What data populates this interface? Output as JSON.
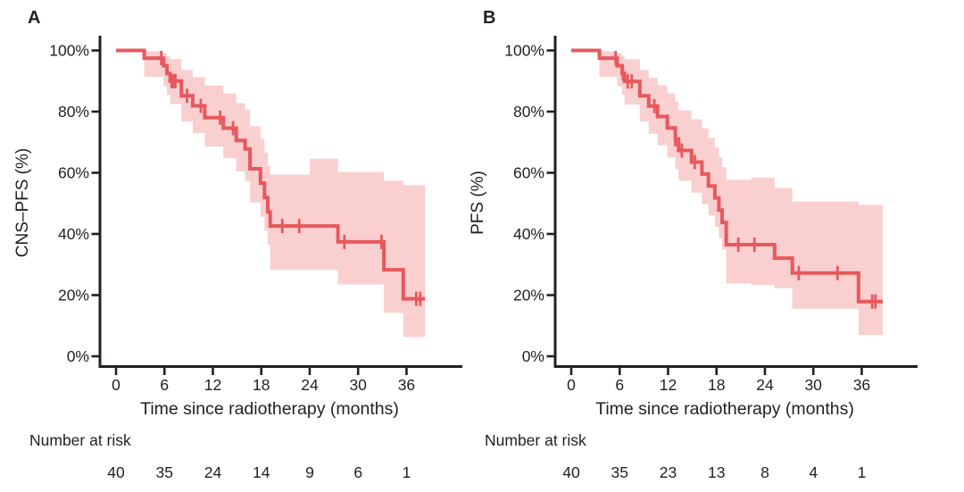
{
  "figure": {
    "background": "#ffffff",
    "accent_color": "#e7585c",
    "band_color": "#f9cfd0",
    "axis_color": "#231f20"
  },
  "chart_data": [
    {
      "type": "line",
      "subtype": "kaplan_meier_step",
      "panel_label": "A",
      "ylabel": "CNS–PFS (%)",
      "xlabel": "Time since radiotherapy (months)",
      "xlim": [
        0,
        43
      ],
      "ylim": [
        0,
        100
      ],
      "grid": false,
      "legend": "none",
      "x_ticks": [
        0,
        6,
        12,
        18,
        24,
        30,
        36
      ],
      "y_ticks": [
        100,
        80,
        60,
        40,
        20,
        0
      ],
      "y_tick_suffix": "%",
      "steps": [
        [
          0,
          100
        ],
        [
          3.5,
          97.5
        ],
        [
          5.9,
          95.0
        ],
        [
          6.3,
          92.5
        ],
        [
          6.7,
          90.0
        ],
        [
          8.1,
          85.2
        ],
        [
          9.5,
          81.9
        ],
        [
          11.0,
          78.0
        ],
        [
          13.3,
          74.6
        ],
        [
          14.9,
          70.6
        ],
        [
          16.0,
          67.8
        ],
        [
          16.6,
          61.3
        ],
        [
          17.9,
          56.6
        ],
        [
          18.4,
          51.9
        ],
        [
          18.8,
          47.2
        ],
        [
          19.1,
          42.6
        ],
        [
          27.5,
          37.4
        ],
        [
          33.2,
          28.3
        ],
        [
          35.6,
          18.8
        ]
      ],
      "end_time": 38.3,
      "censors": [
        [
          5.6,
          97.5
        ],
        [
          6.9,
          90.0
        ],
        [
          7.1,
          90.0
        ],
        [
          7.35,
          90.0
        ],
        [
          8.8,
          85.2
        ],
        [
          10.5,
          81.9
        ],
        [
          12.9,
          78.0
        ],
        [
          14.5,
          74.6
        ],
        [
          20.6,
          42.6
        ],
        [
          22.7,
          42.6
        ],
        [
          28.3,
          37.4
        ],
        [
          32.9,
          37.4
        ],
        [
          37.2,
          18.8
        ],
        [
          37.7,
          18.8
        ]
      ],
      "band": [
        [
          3.5,
          91.4,
          99.7
        ],
        [
          5.9,
          88.3,
          99.1
        ],
        [
          6.3,
          85.5,
          98.2
        ],
        [
          6.7,
          82.5,
          97.2
        ],
        [
          8.1,
          76.8,
          93.6
        ],
        [
          9.5,
          73.0,
          91.2
        ],
        [
          11.0,
          68.6,
          88.5
        ],
        [
          13.3,
          64.8,
          85.9
        ],
        [
          14.9,
          60.4,
          82.8
        ],
        [
          16.0,
          57.3,
          80.6
        ],
        [
          16.6,
          50.3,
          75.2
        ],
        [
          17.9,
          45.6,
          71.0
        ],
        [
          18.4,
          41.0,
          66.6
        ],
        [
          18.8,
          36.5,
          62.2
        ],
        [
          19.1,
          28.2,
          59.4
        ],
        [
          24.0,
          28.2,
          64.6
        ],
        [
          27.5,
          23.5,
          60.3
        ],
        [
          33.2,
          14.2,
          57.4
        ],
        [
          35.6,
          6.3,
          55.9
        ]
      ],
      "risk_label": "Number at risk",
      "number_at_risk": {
        "times": [
          0,
          6,
          12,
          18,
          24,
          30,
          36
        ],
        "counts": [
          40,
          35,
          24,
          14,
          9,
          6,
          1
        ]
      }
    },
    {
      "type": "line",
      "subtype": "kaplan_meier_step",
      "panel_label": "B",
      "ylabel": "PFS (%)",
      "xlabel": "Time since radiotherapy (months)",
      "xlim": [
        0,
        43
      ],
      "ylim": [
        0,
        100
      ],
      "grid": false,
      "legend": "none",
      "x_ticks": [
        0,
        6,
        12,
        18,
        24,
        30,
        36
      ],
      "y_ticks": [
        100,
        80,
        60,
        40,
        20,
        0
      ],
      "y_tick_suffix": "%",
      "steps": [
        [
          0,
          100
        ],
        [
          3.5,
          97.5
        ],
        [
          5.7,
          95.0
        ],
        [
          6.3,
          92.5
        ],
        [
          6.6,
          89.9
        ],
        [
          8.5,
          85.2
        ],
        [
          9.6,
          81.8
        ],
        [
          10.7,
          78.4
        ],
        [
          11.9,
          74.7
        ],
        [
          12.9,
          71.0
        ],
        [
          13.3,
          67.3
        ],
        [
          14.9,
          63.5
        ],
        [
          16.2,
          59.6
        ],
        [
          17.0,
          55.7
        ],
        [
          17.8,
          51.8
        ],
        [
          18.3,
          47.8
        ],
        [
          18.7,
          43.7
        ],
        [
          19.2,
          36.5
        ],
        [
          25.2,
          32.1
        ],
        [
          27.4,
          27.2
        ],
        [
          35.6,
          17.9
        ]
      ],
      "end_time": 38.6,
      "censors": [
        [
          5.5,
          97.5
        ],
        [
          6.4,
          92.5
        ],
        [
          7.0,
          89.9
        ],
        [
          7.5,
          89.9
        ],
        [
          10.3,
          81.8
        ],
        [
          12.9,
          71.0
        ],
        [
          13.7,
          67.3
        ],
        [
          15.3,
          63.5
        ],
        [
          20.7,
          36.5
        ],
        [
          22.7,
          36.5
        ],
        [
          28.2,
          27.2
        ],
        [
          33.0,
          27.2
        ],
        [
          37.3,
          17.9
        ],
        [
          37.7,
          17.9
        ]
      ],
      "band": [
        [
          3.5,
          91.4,
          99.7
        ],
        [
          5.7,
          88.3,
          99.1
        ],
        [
          6.3,
          85.5,
          98.2
        ],
        [
          6.6,
          82.3,
          97.1
        ],
        [
          8.5,
          76.8,
          93.6
        ],
        [
          9.6,
          72.8,
          91.1
        ],
        [
          10.7,
          69.0,
          88.6
        ],
        [
          11.9,
          65.0,
          85.9
        ],
        [
          12.9,
          61.2,
          83.2
        ],
        [
          13.3,
          57.4,
          80.4
        ],
        [
          14.9,
          53.5,
          77.5
        ],
        [
          16.2,
          49.7,
          74.5
        ],
        [
          17.0,
          46.0,
          71.4
        ],
        [
          17.8,
          42.3,
          68.3
        ],
        [
          18.3,
          38.6,
          65.1
        ],
        [
          18.7,
          34.9,
          61.8
        ],
        [
          19.2,
          23.8,
          57.7
        ],
        [
          22.3,
          23.3,
          58.4
        ],
        [
          25.2,
          22.3,
          55.0
        ],
        [
          27.4,
          15.5,
          50.6
        ],
        [
          35.6,
          7.0,
          49.5
        ]
      ],
      "risk_label": "Number at risk",
      "number_at_risk": {
        "times": [
          0,
          6,
          12,
          18,
          24,
          30,
          36
        ],
        "counts": [
          40,
          35,
          23,
          13,
          8,
          4,
          1
        ]
      }
    }
  ]
}
